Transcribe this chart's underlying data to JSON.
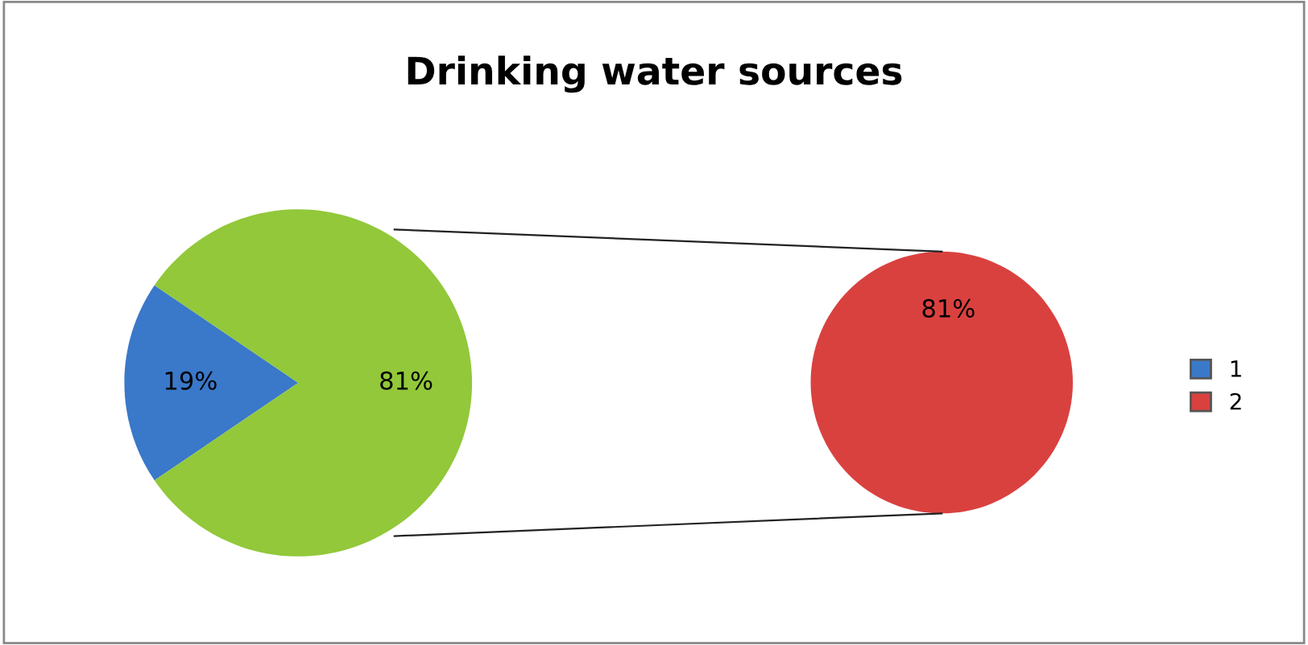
{
  "chart_data": [
    {
      "type": "pie",
      "title": "Drinking water sources",
      "categories": [
        "1",
        null
      ],
      "values": [
        19,
        81
      ],
      "colors": [
        "#3a78c9",
        "#92c83a"
      ],
      "value_labels": [
        "19%",
        "81%"
      ],
      "legend": "right"
    },
    {
      "type": "pie",
      "categories": [
        "2"
      ],
      "values": [
        81
      ],
      "colors": [
        "#d9413f"
      ],
      "value_labels": [
        "81%"
      ]
    }
  ]
}
